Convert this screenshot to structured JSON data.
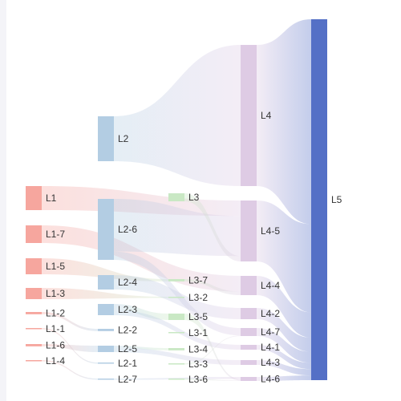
{
  "chart_data": {
    "type": "sankey",
    "title": "",
    "levels": [
      [
        {
          "name": "L1",
          "value": 8.5,
          "color": "#f6a69e"
        },
        {
          "name": "L1-7",
          "value": 6.5,
          "color": "#f6a69e"
        },
        {
          "name": "L1-5",
          "value": 5.5,
          "color": "#f6a69e"
        },
        {
          "name": "L1-3",
          "value": 4.0,
          "color": "#f6a69e"
        },
        {
          "name": "L1-2",
          "value": 1.0,
          "color": "#f6a69e"
        },
        {
          "name": "L1-1",
          "value": 0.3,
          "color": "#f6a69e"
        },
        {
          "name": "L1-6",
          "value": 1.0,
          "color": "#f6a69e"
        },
        {
          "name": "L1-4",
          "value": 0.3,
          "color": "#f6a69e"
        }
      ],
      [
        {
          "name": "L2",
          "value": 24.0,
          "color": "#b3cde3"
        },
        {
          "name": "L2-6",
          "value": 28.0,
          "color": "#b3cde3"
        },
        {
          "name": "L2-4",
          "value": 6.5,
          "color": "#b3cde3"
        },
        {
          "name": "L2-3",
          "value": 4.5,
          "color": "#b3cde3"
        },
        {
          "name": "L2-2",
          "value": 1.0,
          "color": "#b3cde3"
        },
        {
          "name": "L2-5",
          "value": 3.0,
          "color": "#b3cde3"
        },
        {
          "name": "L2-1",
          "value": 0.3,
          "color": "#b3cde3"
        },
        {
          "name": "L2-7",
          "value": 0.3,
          "color": "#b3cde3"
        }
      ],
      [
        {
          "name": "L3",
          "value": 3.0,
          "color": "#c9e8c4"
        },
        {
          "name": "L3-7",
          "value": 1.0,
          "color": "#c9e8c4"
        },
        {
          "name": "L3-2",
          "value": 0.5,
          "color": "#c9e8c4"
        },
        {
          "name": "L3-5",
          "value": 2.5,
          "color": "#c9e8c4"
        },
        {
          "name": "L3-1",
          "value": 0.3,
          "color": "#c9e8c4"
        },
        {
          "name": "L3-4",
          "value": 1.0,
          "color": "#c9e8c4"
        },
        {
          "name": "L3-3",
          "value": 0.3,
          "color": "#c9e8c4"
        },
        {
          "name": "L3-6",
          "value": 0.3,
          "color": "#c9e8c4"
        }
      ],
      [
        {
          "name": "L4",
          "value": 65.0,
          "color": "#decbe4"
        },
        {
          "name": "L4-5",
          "value": 28.0,
          "color": "#decbe4"
        },
        {
          "name": "L4-4",
          "value": 8.0,
          "color": "#decbe4"
        },
        {
          "name": "L4-2",
          "value": 4.5,
          "color": "#decbe4"
        },
        {
          "name": "L4-7",
          "value": 3.5,
          "color": "#decbe4"
        },
        {
          "name": "L4-1",
          "value": 2.0,
          "color": "#decbe4"
        },
        {
          "name": "L4-3",
          "value": 2.0,
          "color": "#decbe4"
        },
        {
          "name": "L4-6",
          "value": 1.5,
          "color": "#decbe4"
        }
      ],
      [
        {
          "name": "L5",
          "value": 166.0,
          "color": "#5470c6"
        }
      ]
    ],
    "links": [
      {
        "source": "L2",
        "target": "L4",
        "value": 24.0
      },
      {
        "source": "L1",
        "target": "L4-5",
        "value": 8.5
      },
      {
        "source": "L1-7",
        "target": "L4-4",
        "value": 6.5
      },
      {
        "source": "L1-5",
        "target": "L3-7",
        "value": 5.5
      },
      {
        "source": "L1-3",
        "target": "L3-2",
        "value": 4.0
      },
      {
        "source": "L1-2",
        "target": "L2-2",
        "value": 1.0
      },
      {
        "source": "L1-1",
        "target": "L2-1",
        "value": 0.3
      },
      {
        "source": "L1-6",
        "target": "L2-5",
        "value": 1.0
      },
      {
        "source": "L1-4",
        "target": "L2-7",
        "value": 0.3
      },
      {
        "source": "L2-6",
        "target": "L4-5",
        "value": 22.0
      },
      {
        "source": "L2-6",
        "target": "L4-7",
        "value": 3.5
      },
      {
        "source": "L2-4",
        "target": "L4-2",
        "value": 4.5
      },
      {
        "source": "L2-3",
        "target": "L3-5",
        "value": 2.5
      },
      {
        "source": "L2-3",
        "target": "L4-1",
        "value": 2.0
      },
      {
        "source": "L2-5",
        "target": "L3-4",
        "value": 1.0
      },
      {
        "source": "L2-5",
        "target": "L4-3",
        "value": 2.0
      },
      {
        "source": "L2-7",
        "target": "L4-6",
        "value": 1.5
      },
      {
        "source": "L3",
        "target": "L4-5",
        "value": 3.0
      },
      {
        "source": "L3-7",
        "target": "L4-4",
        "value": 1.5
      },
      {
        "source": "L3-5",
        "target": "L4-6",
        "value": 1.0
      },
      {
        "source": "L3-3",
        "target": "L4-7",
        "value": 0.3
      },
      {
        "source": "L3-6",
        "target": "L4-6",
        "value": 0.3
      },
      {
        "source": "L4",
        "target": "L5",
        "value": 65.0
      },
      {
        "source": "L4-5",
        "target": "L5",
        "value": 28.0
      },
      {
        "source": "L4-4",
        "target": "L5",
        "value": 8.0
      },
      {
        "source": "L4-2",
        "target": "L5",
        "value": 4.5
      },
      {
        "source": "L4-7",
        "target": "L5",
        "value": 3.5
      },
      {
        "source": "L4-1",
        "target": "L5",
        "value": 2.0
      },
      {
        "source": "L4-3",
        "target": "L5",
        "value": 2.0
      },
      {
        "source": "L4-6",
        "target": "L5",
        "value": 1.5
      }
    ]
  }
}
